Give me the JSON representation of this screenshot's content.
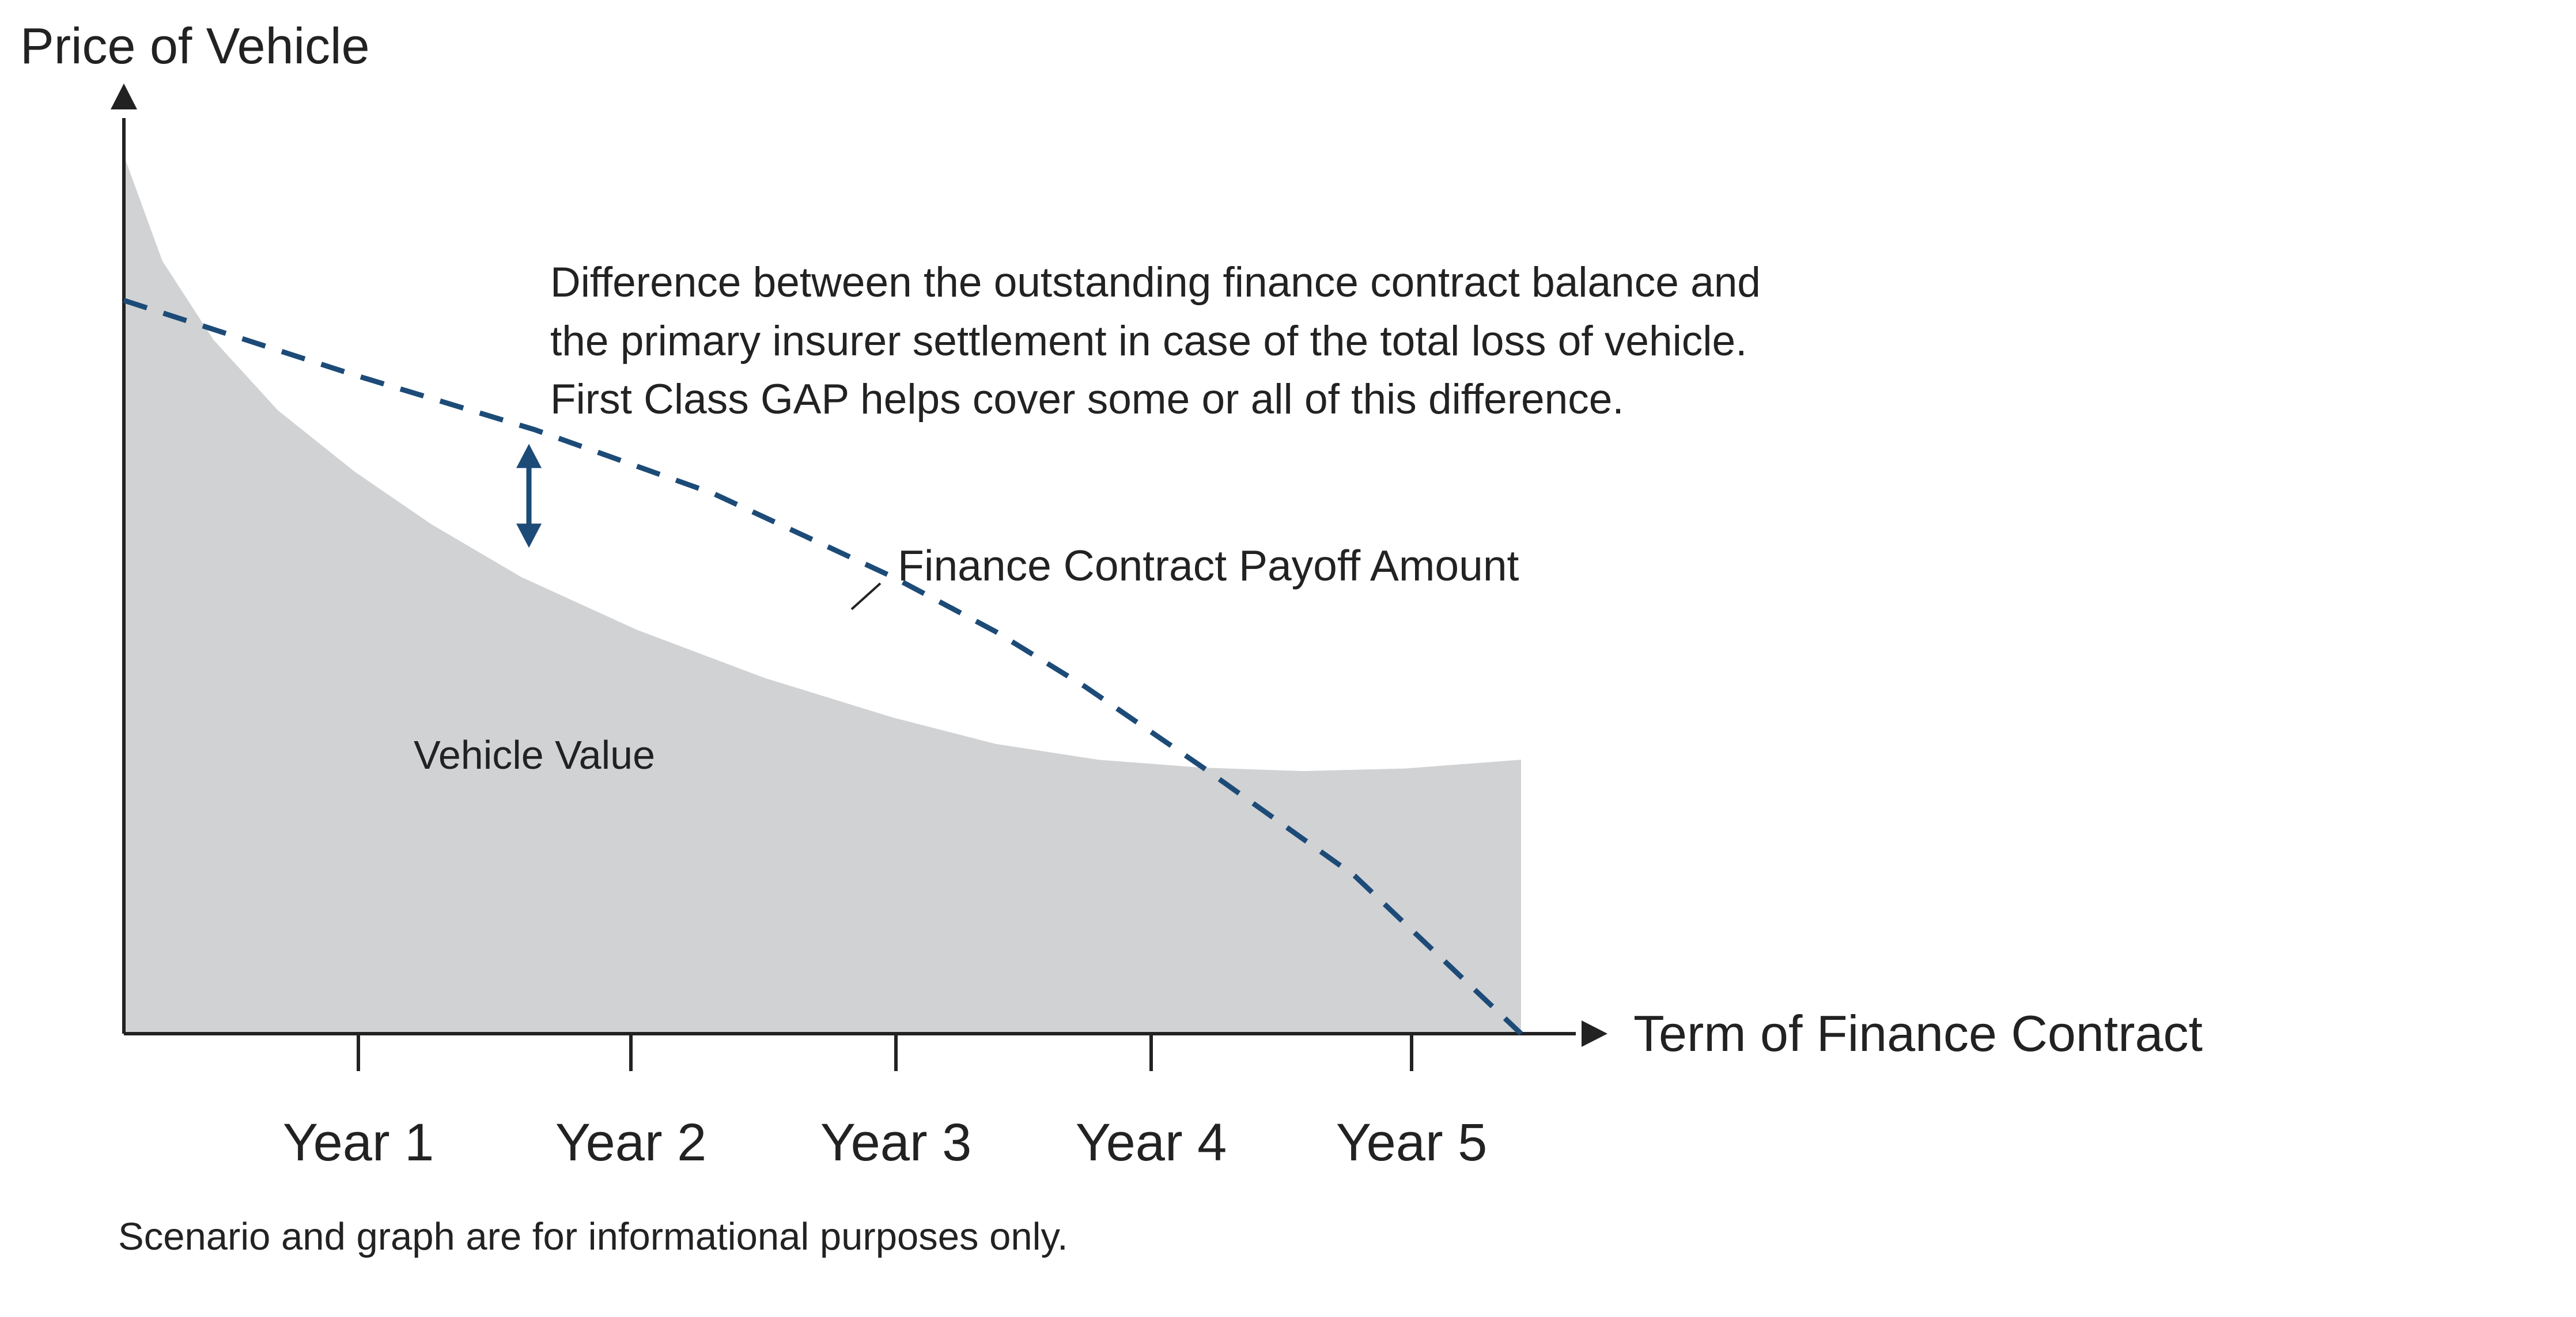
{
  "chart_data": {
    "type": "area",
    "title": "",
    "ylabel": "Price of Vehicle",
    "xlabel": "Term of Finance Contract",
    "categories": [
      "Year 1",
      "Year 2",
      "Year 3",
      "Year 4",
      "Year 5"
    ],
    "xlim": [
      0,
      5.45
    ],
    "ylim": [
      0,
      100
    ],
    "grid": false,
    "legend": "none",
    "series": [
      {
        "name": "Vehicle Value",
        "style": "filled-area",
        "color": "#d1d2d4",
        "points": [
          [
            0,
            100
          ],
          [
            0.15,
            88
          ],
          [
            0.35,
            79
          ],
          [
            0.6,
            71
          ],
          [
            0.9,
            64
          ],
          [
            1.2,
            58
          ],
          [
            1.55,
            52
          ],
          [
            2.0,
            46
          ],
          [
            2.5,
            40.5
          ],
          [
            3.0,
            36
          ],
          [
            3.4,
            33
          ],
          [
            3.8,
            31.2
          ],
          [
            4.2,
            30.3
          ],
          [
            4.6,
            29.9
          ],
          [
            5.0,
            30.2
          ],
          [
            5.45,
            31.2
          ]
        ]
      },
      {
        "name": "Finance Contract Payoff Amount",
        "style": "dashed-line",
        "color": "#1d4b78",
        "points": [
          [
            0,
            83.5
          ],
          [
            0.9,
            75
          ],
          [
            1.6,
            68.8
          ],
          [
            2.3,
            61.5
          ],
          [
            3.0,
            52
          ],
          [
            3.4,
            45.8
          ],
          [
            3.75,
            39.5
          ],
          [
            4.2,
            30.5
          ],
          [
            4.8,
            18
          ],
          [
            5.45,
            0
          ]
        ]
      }
    ],
    "annotations": [
      {
        "id": "gap-difference",
        "lines": [
          "Difference between the outstanding finance contract balance and",
          "the primary insurer settlement in case of the total loss of vehicle.",
          "First Class GAP helps cover some or all of this difference."
        ],
        "arrow_x": 1.58,
        "arrow_from": 68.8,
        "arrow_to": 55.0
      }
    ],
    "footnote": "Scenario and graph are for informational purposes only."
  },
  "colors": {
    "axis": "#222222",
    "area": "#d1d2d4",
    "payoff_line": "#1d4b78",
    "arrow": "#1d4b78"
  }
}
